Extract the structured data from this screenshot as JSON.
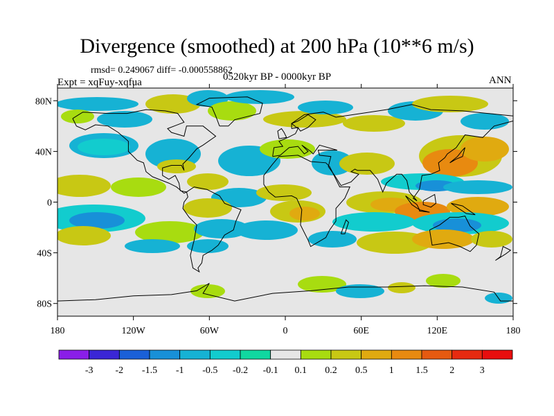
{
  "chart_data": {
    "type": "map-filled-contour",
    "title": "Divergence (smoothed) at 200 hPa (10**6 m/s)",
    "stats": "rmsd= 0.249067 diff= -0.000558862",
    "experiment": "Expt = xqFuy-xqfua",
    "period": "0520kyr BP - 0000kyr BP",
    "season": "ANN",
    "x_ticks": [
      "180",
      "120W",
      "60W",
      "0",
      "60E",
      "120E",
      "180"
    ],
    "y_ticks": [
      "80N",
      "40N",
      "0",
      "40S",
      "80S"
    ],
    "lon_range": [
      -180,
      180
    ],
    "lat_range": [
      -90,
      90
    ],
    "colorbar": {
      "labels": [
        "-3",
        "-2",
        "-1.5",
        "-1",
        "-0.5",
        "-0.2",
        "-0.1",
        "0.1",
        "0.2",
        "0.5",
        "1",
        "1.5",
        "2",
        "3"
      ],
      "colors": [
        "#8a1ee8",
        "#3a26d6",
        "#1a60d8",
        "#1890d8",
        "#16b2d4",
        "#12ccce",
        "#10d8a0",
        "#e6e6e6",
        "#a8dc10",
        "#c8c814",
        "#e0aa10",
        "#e88a10",
        "#e65a10",
        "#e62a10",
        "#e80e0e"
      ]
    }
  }
}
